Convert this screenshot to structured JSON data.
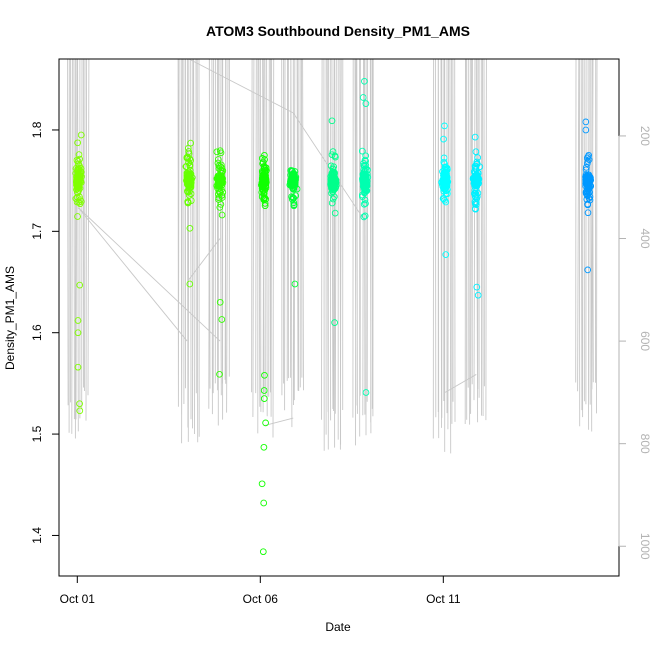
{
  "chart_data": {
    "type": "scatter",
    "title": "ATOM3 Southbound Density_PM1_AMS",
    "xlabel": "Date",
    "ylabel": "Density_PM1_AMS",
    "x_ticks": [
      {
        "value": 1,
        "label": "Oct 01"
      },
      {
        "value": 6,
        "label": "Oct 06"
      },
      {
        "value": 11,
        "label": "Oct 11"
      }
    ],
    "xlim": [
      0.5,
      15.8
    ],
    "ylim": [
      1.36,
      1.87
    ],
    "y_ticks": [
      1.4,
      1.5,
      1.6,
      1.7,
      1.8
    ],
    "y2_ticks": [
      200,
      400,
      600,
      800,
      1000
    ],
    "y2lim": [
      1058,
      50
    ],
    "y2_label_color": "#b3b3b3",
    "point_color_scale": [
      "#80ff00",
      "#00ff22",
      "#00ffc0",
      "#00ffff",
      "#0090ff"
    ],
    "clusters": [
      {
        "x": 1.03,
        "color": "#80ff00",
        "ymin": 1.525,
        "ymax": 1.795,
        "outliers": [
          1.795,
          1.76,
          1.647,
          1.612,
          1.6,
          1.566,
          1.53,
          1.523
        ],
        "profile_top": 50,
        "profile_bottom": 800
      },
      {
        "x": 4.05,
        "color": "#66ff00",
        "ymin": 1.648,
        "ymax": 1.787,
        "outliers": [
          1.787,
          1.782,
          1.703,
          1.648
        ],
        "profile_top": 50,
        "profile_bottom": 800
      },
      {
        "x": 4.9,
        "color": "#33ff00",
        "ymin": 1.559,
        "ymax": 1.78,
        "outliers": [
          1.63,
          1.613,
          1.559
        ],
        "profile_top": 50,
        "profile_bottom": 770
      },
      {
        "x": 6.1,
        "color": "#11ff00",
        "ymin": 1.384,
        "ymax": 1.775,
        "outliers": [
          1.775,
          1.558,
          1.543,
          1.535,
          1.511,
          1.487,
          1.451,
          1.432,
          1.384
        ],
        "profile_top": 50,
        "profile_bottom": 790
      },
      {
        "x": 6.9,
        "color": "#00ff33",
        "ymin": 1.648,
        "ymax": 1.76,
        "outliers": [
          1.76,
          1.648
        ],
        "profile_top": 50,
        "profile_bottom": 770
      },
      {
        "x": 8.0,
        "color": "#00ff8c",
        "ymin": 1.61,
        "ymax": 1.809,
        "outliers": [
          1.809,
          1.61
        ],
        "profile_top": 50,
        "profile_bottom": 820
      },
      {
        "x": 8.85,
        "color": "#00ffb0",
        "ymin": 1.541,
        "ymax": 1.848,
        "outliers": [
          1.848,
          1.832,
          1.826,
          1.541
        ],
        "profile_top": 50,
        "profile_bottom": 805
      },
      {
        "x": 11.05,
        "color": "#00ffff",
        "ymin": 1.677,
        "ymax": 1.804,
        "outliers": [
          1.804,
          1.677
        ],
        "profile_top": 50,
        "profile_bottom": 820
      },
      {
        "x": 11.9,
        "color": "#00f0ff",
        "ymin": 1.637,
        "ymax": 1.793,
        "outliers": [
          1.793,
          1.645,
          1.637
        ],
        "profile_top": 50,
        "profile_bottom": 790
      },
      {
        "x": 14.95,
        "color": "#0098ff",
        "ymin": 1.662,
        "ymax": 1.808,
        "outliers": [
          1.808,
          1.8,
          1.662
        ],
        "profile_top": 50,
        "profile_bottom": 780
      }
    ]
  }
}
